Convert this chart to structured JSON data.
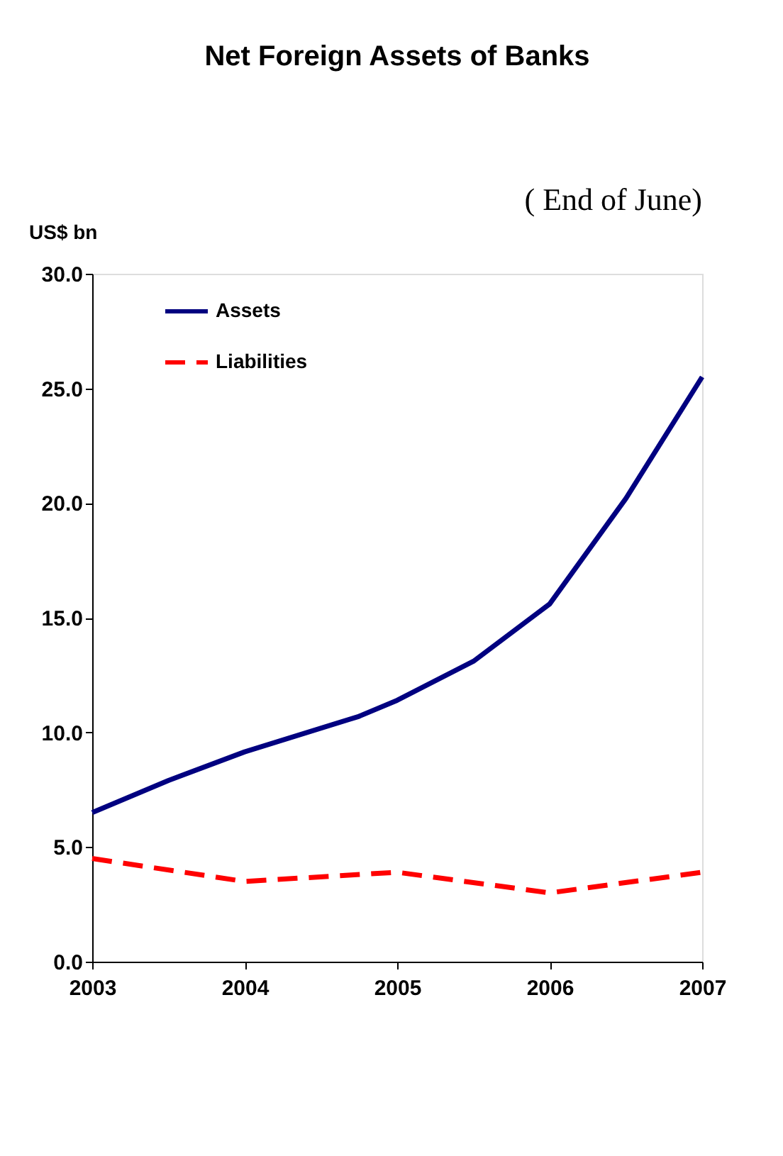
{
  "chart_data": {
    "type": "line",
    "title": "Net Foreign Assets of Banks",
    "ylabel": "US$ bn",
    "annotations": [
      "( End of June)"
    ],
    "xlim": [
      2003,
      2007
    ],
    "xticks": [
      2003,
      2004,
      2005,
      2006,
      2007
    ],
    "ylim": [
      0,
      30
    ],
    "yticks": [
      {
        "value": 0,
        "label": "0.0"
      },
      {
        "value": 5,
        "label": "5.0"
      },
      {
        "value": 10,
        "label": "10.0"
      },
      {
        "value": 15,
        "label": "15.0"
      },
      {
        "value": 20,
        "label": "20.0"
      },
      {
        "value": 25,
        "label": "25.0"
      },
      {
        "value": 30,
        "label": "30.0"
      }
    ],
    "grid": false,
    "legend": "top left",
    "marker": "none",
    "series": [
      {
        "name": "Assets",
        "color": "#000080",
        "line_style": "solid",
        "x": [
          2003,
          2003.5,
          2004,
          2004.75,
          2005,
          2005.5,
          2006,
          2006.5,
          2007
        ],
        "values": [
          6.5,
          7.9,
          9.15,
          10.7,
          11.4,
          13.1,
          15.6,
          20.2,
          25.5
        ]
      },
      {
        "name": "Liabilities",
        "color": "#ff0000",
        "line_style": "dashed",
        "x": [
          2003,
          2004,
          2005,
          2006,
          2007
        ],
        "values": [
          4.5,
          3.5,
          3.9,
          3.0,
          3.9
        ]
      }
    ]
  }
}
